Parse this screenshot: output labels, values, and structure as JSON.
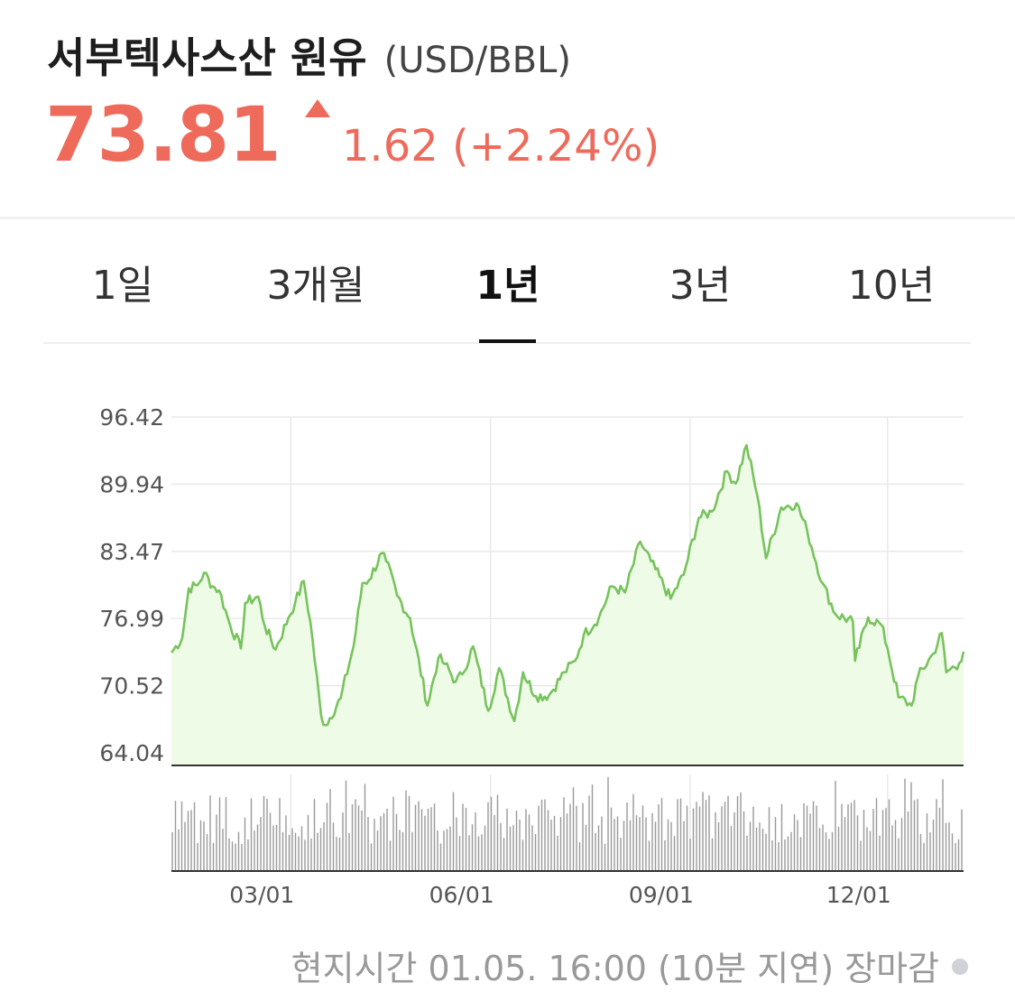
{
  "header": {
    "name": "서부텍사스산 원유",
    "unit": "(USD/BBL)",
    "price": "73.81",
    "change": "1.62 (+2.24%)"
  },
  "tabs": [
    {
      "label": "1일",
      "active": false
    },
    {
      "label": "3개월",
      "active": false
    },
    {
      "label": "1년",
      "active": true
    },
    {
      "label": "3년",
      "active": false
    },
    {
      "label": "10년",
      "active": false
    }
  ],
  "footer": {
    "text": "현지시간 01.05. 16:00 (10분 지연) 장마감"
  },
  "colors": {
    "accent": "#ee6b5c",
    "line": "#77c35c",
    "fill": "#eefbe6"
  },
  "chart_data": {
    "type": "area",
    "y_ticks": [
      "96.42",
      "89.94",
      "83.47",
      "76.99",
      "70.52",
      "64.04"
    ],
    "ylim": [
      64.04,
      96.42
    ],
    "x_ticks": [
      "03/01",
      "06/01",
      "09/01",
      "12/01"
    ],
    "grid": true,
    "price_series": [
      {
        "d": "2023-01-05",
        "v": 73.7
      },
      {
        "d": "2023-01-10",
        "v": 75.1
      },
      {
        "d": "2023-01-13",
        "v": 79.9
      },
      {
        "d": "2023-01-17",
        "v": 80.2
      },
      {
        "d": "2023-01-20",
        "v": 81.4
      },
      {
        "d": "2023-01-24",
        "v": 80.1
      },
      {
        "d": "2023-01-27",
        "v": 79.7
      },
      {
        "d": "2023-02-01",
        "v": 76.4
      },
      {
        "d": "2023-02-06",
        "v": 74.1
      },
      {
        "d": "2023-02-08",
        "v": 78.5
      },
      {
        "d": "2023-02-14",
        "v": 79.1
      },
      {
        "d": "2023-02-17",
        "v": 76.3
      },
      {
        "d": "2023-02-22",
        "v": 74.0
      },
      {
        "d": "2023-02-28",
        "v": 77.1
      },
      {
        "d": "2023-03-03",
        "v": 78.5
      },
      {
        "d": "2023-03-07",
        "v": 80.6
      },
      {
        "d": "2023-03-10",
        "v": 76.7
      },
      {
        "d": "2023-03-15",
        "v": 67.6
      },
      {
        "d": "2023-03-17",
        "v": 66.7
      },
      {
        "d": "2023-03-24",
        "v": 69.3
      },
      {
        "d": "2023-03-30",
        "v": 74.4
      },
      {
        "d": "2023-04-03",
        "v": 80.4
      },
      {
        "d": "2023-04-06",
        "v": 80.7
      },
      {
        "d": "2023-04-12",
        "v": 83.3
      },
      {
        "d": "2023-04-14",
        "v": 82.5
      },
      {
        "d": "2023-04-19",
        "v": 79.2
      },
      {
        "d": "2023-04-25",
        "v": 77.0
      },
      {
        "d": "2023-05-03",
        "v": 68.6
      },
      {
        "d": "2023-05-08",
        "v": 73.2
      },
      {
        "d": "2023-05-11",
        "v": 72.6
      },
      {
        "d": "2023-05-16",
        "v": 70.9
      },
      {
        "d": "2023-05-19",
        "v": 71.6
      },
      {
        "d": "2023-05-24",
        "v": 74.3
      },
      {
        "d": "2023-05-31",
        "v": 68.1
      },
      {
        "d": "2023-06-05",
        "v": 72.2
      },
      {
        "d": "2023-06-12",
        "v": 67.1
      },
      {
        "d": "2023-06-16",
        "v": 71.8
      },
      {
        "d": "2023-06-22",
        "v": 69.5
      },
      {
        "d": "2023-06-28",
        "v": 69.6
      },
      {
        "d": "2023-07-05",
        "v": 71.8
      },
      {
        "d": "2023-07-10",
        "v": 72.9
      },
      {
        "d": "2023-07-14",
        "v": 75.4
      },
      {
        "d": "2023-07-21",
        "v": 77.1
      },
      {
        "d": "2023-07-27",
        "v": 80.1
      },
      {
        "d": "2023-08-02",
        "v": 79.5
      },
      {
        "d": "2023-08-09",
        "v": 84.4
      },
      {
        "d": "2023-08-14",
        "v": 82.5
      },
      {
        "d": "2023-08-23",
        "v": 78.9
      },
      {
        "d": "2023-08-29",
        "v": 81.2
      },
      {
        "d": "2023-09-05",
        "v": 86.7
      },
      {
        "d": "2023-09-11",
        "v": 87.3
      },
      {
        "d": "2023-09-18",
        "v": 91.2
      },
      {
        "d": "2023-09-22",
        "v": 90.0
      },
      {
        "d": "2023-09-27",
        "v": 93.7
      },
      {
        "d": "2023-10-02",
        "v": 88.8
      },
      {
        "d": "2023-10-06",
        "v": 82.8
      },
      {
        "d": "2023-10-13",
        "v": 87.7
      },
      {
        "d": "2023-10-20",
        "v": 88.1
      },
      {
        "d": "2023-10-25",
        "v": 85.4
      },
      {
        "d": "2023-11-01",
        "v": 80.4
      },
      {
        "d": "2023-11-07",
        "v": 77.4
      },
      {
        "d": "2023-11-15",
        "v": 76.7
      },
      {
        "d": "2023-11-16",
        "v": 72.9
      },
      {
        "d": "2023-11-22",
        "v": 77.1
      },
      {
        "d": "2023-11-28",
        "v": 76.4
      },
      {
        "d": "2023-12-01",
        "v": 74.1
      },
      {
        "d": "2023-12-06",
        "v": 69.4
      },
      {
        "d": "2023-12-12",
        "v": 68.6
      },
      {
        "d": "2023-12-15",
        "v": 71.4
      },
      {
        "d": "2023-12-22",
        "v": 73.6
      },
      {
        "d": "2023-12-26",
        "v": 75.6
      },
      {
        "d": "2023-12-28",
        "v": 71.8
      },
      {
        "d": "2024-01-03",
        "v": 72.7
      },
      {
        "d": "2024-01-05",
        "v": 73.8
      }
    ]
  }
}
